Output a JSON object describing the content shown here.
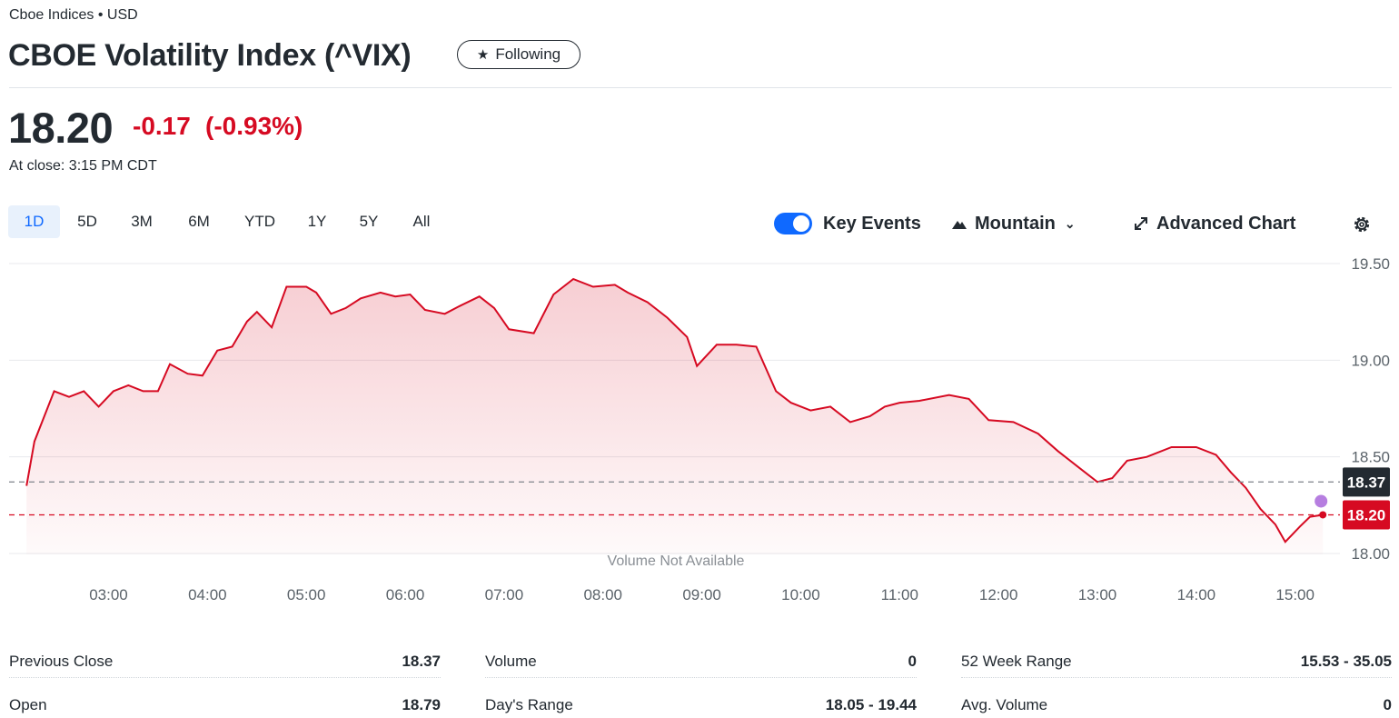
{
  "header": {
    "exchange": "Cboe Indices • USD",
    "title": "CBOE Volatility Index (^VIX)",
    "follow_label": "Following"
  },
  "quote": {
    "price": "18.20",
    "change": "-0.17",
    "change_percent": "(-0.93%)",
    "close_time": "At close: 3:15 PM CDT"
  },
  "range_tabs": [
    "1D",
    "5D",
    "3M",
    "6M",
    "YTD",
    "1Y",
    "5Y",
    "All"
  ],
  "active_range": "1D",
  "controls": {
    "key_events": "Key Events",
    "key_events_on": true,
    "chart_type": "Mountain",
    "advanced_chart": "Advanced Chart"
  },
  "colors": {
    "accent": "#0f69ff",
    "negative": "#d60a22",
    "text": "#232a31",
    "prev_close_badge": "#232a31"
  },
  "icons": {
    "star": "star-icon",
    "mountain": "mountain-icon",
    "chevron": "chevron-down-icon",
    "expand": "expand-icon",
    "settings": "gear-icon"
  },
  "chart_data": {
    "type": "area",
    "x_labels": [
      "03:00",
      "04:00",
      "05:00",
      "06:00",
      "07:00",
      "08:00",
      "09:00",
      "10:00",
      "11:00",
      "12:00",
      "13:00",
      "14:00",
      "15:00"
    ],
    "y_ticks": [
      19.5,
      19.0,
      18.5,
      18.0
    ],
    "y_tick_labels": [
      "19.50",
      "19.00",
      "18.50",
      "18.00"
    ],
    "ylim": [
      17.96,
      19.53
    ],
    "x_range": [
      2.17,
      15.3
    ],
    "previous_close": 18.37,
    "previous_close_label": "18.37",
    "last_price": 18.2,
    "last_price_label": "18.20",
    "note": "Volume Not Available",
    "series": [
      {
        "values": [
          [
            2.17,
            18.35
          ],
          [
            2.25,
            18.58
          ],
          [
            2.45,
            18.84
          ],
          [
            2.6,
            18.81
          ],
          [
            2.75,
            18.84
          ],
          [
            2.9,
            18.76
          ],
          [
            3.05,
            18.84
          ],
          [
            3.2,
            18.87
          ],
          [
            3.35,
            18.84
          ],
          [
            3.5,
            18.84
          ],
          [
            3.62,
            18.98
          ],
          [
            3.8,
            18.93
          ],
          [
            3.95,
            18.92
          ],
          [
            4.1,
            19.05
          ],
          [
            4.25,
            19.07
          ],
          [
            4.4,
            19.2
          ],
          [
            4.5,
            19.25
          ],
          [
            4.65,
            19.17
          ],
          [
            4.8,
            19.38
          ],
          [
            5.0,
            19.38
          ],
          [
            5.1,
            19.35
          ],
          [
            5.25,
            19.24
          ],
          [
            5.4,
            19.27
          ],
          [
            5.55,
            19.32
          ],
          [
            5.75,
            19.35
          ],
          [
            5.9,
            19.33
          ],
          [
            6.05,
            19.34
          ],
          [
            6.2,
            19.26
          ],
          [
            6.4,
            19.24
          ],
          [
            6.55,
            19.28
          ],
          [
            6.75,
            19.33
          ],
          [
            6.9,
            19.27
          ],
          [
            7.05,
            19.16
          ],
          [
            7.3,
            19.14
          ],
          [
            7.5,
            19.34
          ],
          [
            7.7,
            19.42
          ],
          [
            7.9,
            19.38
          ],
          [
            8.12,
            19.39
          ],
          [
            8.25,
            19.35
          ],
          [
            8.45,
            19.3
          ],
          [
            8.65,
            19.22
          ],
          [
            8.85,
            19.12
          ],
          [
            8.95,
            18.97
          ],
          [
            9.15,
            19.08
          ],
          [
            9.35,
            19.08
          ],
          [
            9.55,
            19.07
          ],
          [
            9.75,
            18.84
          ],
          [
            9.9,
            18.78
          ],
          [
            10.1,
            18.74
          ],
          [
            10.3,
            18.76
          ],
          [
            10.5,
            18.68
          ],
          [
            10.7,
            18.71
          ],
          [
            10.85,
            18.76
          ],
          [
            11.0,
            18.78
          ],
          [
            11.2,
            18.79
          ],
          [
            11.5,
            18.82
          ],
          [
            11.7,
            18.8
          ],
          [
            11.9,
            18.69
          ],
          [
            12.15,
            18.68
          ],
          [
            12.4,
            18.62
          ],
          [
            12.6,
            18.53
          ],
          [
            12.8,
            18.45
          ],
          [
            13.0,
            18.37
          ],
          [
            13.15,
            18.39
          ],
          [
            13.3,
            18.48
          ],
          [
            13.5,
            18.5
          ],
          [
            13.75,
            18.55
          ],
          [
            14.0,
            18.55
          ],
          [
            14.2,
            18.51
          ],
          [
            14.35,
            18.42
          ],
          [
            14.5,
            18.34
          ],
          [
            14.65,
            18.23
          ],
          [
            14.8,
            18.15
          ],
          [
            14.9,
            18.06
          ],
          [
            15.05,
            18.14
          ],
          [
            15.15,
            18.19
          ],
          [
            15.28,
            18.2
          ]
        ]
      }
    ]
  },
  "stats": [
    {
      "label": "Previous Close",
      "value": "18.37"
    },
    {
      "label": "Volume",
      "value": "0"
    },
    {
      "label": "52 Week Range",
      "value": "15.53 - 35.05"
    },
    {
      "label": "Open",
      "value": "18.79"
    },
    {
      "label": "Day's Range",
      "value": "18.05 - 19.44"
    },
    {
      "label": "Avg. Volume",
      "value": "0"
    }
  ]
}
